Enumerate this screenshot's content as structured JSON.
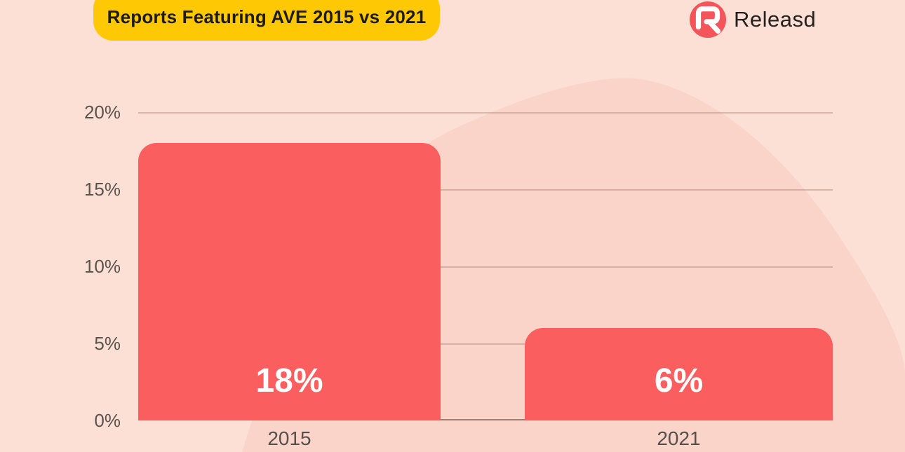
{
  "header": {
    "title": "Reports Featuring AVE 2015 vs 2021",
    "badge_color": "#FFC805",
    "title_color": "#1D1C1A"
  },
  "brand": {
    "name": "Releasd",
    "logo_letter": "R",
    "logo_color": "#F4555A"
  },
  "chart_data": {
    "type": "bar",
    "title": "Reports Featuring AVE 2015 vs 2021",
    "categories": [
      "2015",
      "2021"
    ],
    "values": [
      18,
      6
    ],
    "value_labels": [
      "18%",
      "6%"
    ],
    "y_ticks": [
      "20%",
      "15%",
      "10%",
      "5%",
      "0%"
    ],
    "ylim": [
      0,
      20
    ],
    "grid": true,
    "legend": "none",
    "bar_color": "#FB5E5E",
    "value_label_color": "#FFFFFF"
  },
  "colors": {
    "background": "#FCE0D6",
    "background_blob": "#FAD4C8",
    "gridline": "#AD8475",
    "axis_line": "#826458",
    "tick_text": "#5B534E"
  }
}
